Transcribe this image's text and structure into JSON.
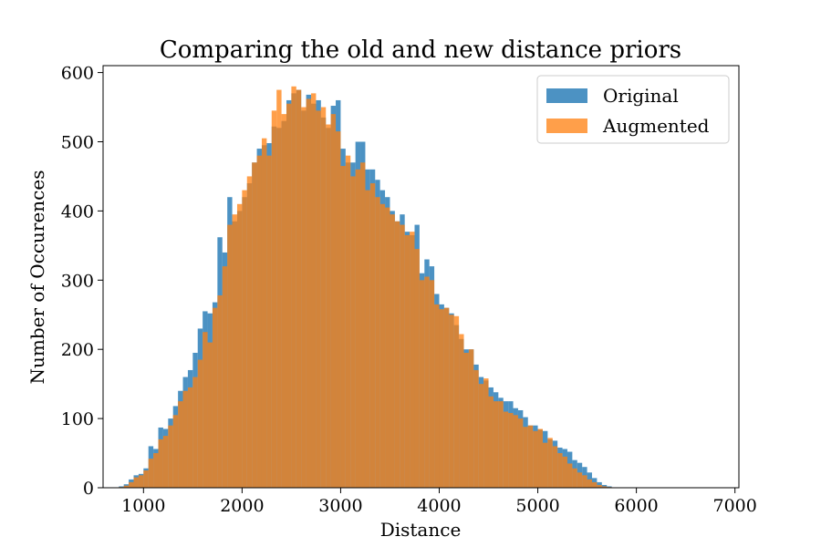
{
  "chart_data": {
    "type": "bar",
    "title": "Comparing the old and new distance priors",
    "xlabel": "Distance",
    "ylabel": "Number of Occurences",
    "xlim": [
      590,
      7040
    ],
    "ylim": [
      0,
      610
    ],
    "x_ticks": [
      1000,
      2000,
      3000,
      4000,
      5000,
      6000,
      7000
    ],
    "y_ticks": [
      0,
      100,
      200,
      300,
      400,
      500,
      600
    ],
    "grid": false,
    "legend_position": "top-right",
    "bin_width": 50,
    "series": [
      {
        "name": "Original",
        "color": "#1f77b4",
        "alpha": 0.8,
        "start": 750,
        "values": [
          2,
          5,
          12,
          18,
          20,
          28,
          60,
          56,
          87,
          85,
          100,
          118,
          140,
          160,
          170,
          195,
          230,
          255,
          252,
          268,
          362,
          340,
          420,
          385,
          400,
          420,
          440,
          470,
          490,
          495,
          498,
          522,
          520,
          530,
          560,
          570,
          575,
          545,
          568,
          555,
          560,
          535,
          520,
          552,
          560,
          490,
          470,
          470,
          500,
          500,
          460,
          460,
          445,
          430,
          420,
          400,
          385,
          395,
          370,
          365,
          380,
          310,
          330,
          320,
          280,
          265,
          260,
          252,
          235,
          215,
          200,
          200,
          178,
          160,
          155,
          145,
          138,
          130,
          125,
          125,
          115,
          112,
          102,
          90,
          90,
          84,
          82,
          70,
          68,
          58,
          56,
          52,
          40,
          36,
          30,
          22,
          14,
          8,
          4,
          2
        ]
      },
      {
        "name": "Augmented",
        "color": "#ff7f0e",
        "alpha": 0.75,
        "start": 750,
        "values": [
          1,
          3,
          8,
          15,
          18,
          25,
          42,
          50,
          70,
          75,
          90,
          105,
          125,
          140,
          145,
          160,
          185,
          225,
          210,
          260,
          278,
          320,
          380,
          395,
          410,
          430,
          450,
          470,
          480,
          505,
          480,
          545,
          575,
          540,
          555,
          580,
          575,
          550,
          562,
          570,
          545,
          550,
          525,
          540,
          515,
          465,
          480,
          450,
          460,
          470,
          430,
          440,
          420,
          410,
          405,
          395,
          385,
          380,
          365,
          370,
          345,
          300,
          305,
          300,
          265,
          258,
          260,
          250,
          248,
          222,
          195,
          200,
          170,
          150,
          158,
          132,
          125,
          125,
          110,
          108,
          105,
          100,
          88,
          90,
          82,
          85,
          65,
          72,
          60,
          50,
          45,
          35,
          28,
          22,
          18,
          12,
          8,
          4,
          2,
          1
        ]
      }
    ]
  }
}
